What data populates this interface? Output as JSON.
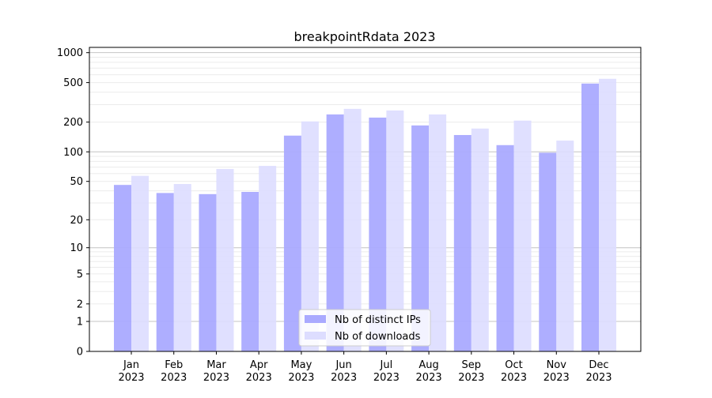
{
  "chart_data": {
    "type": "bar",
    "title": "breakpointRdata 2023",
    "xlabel": "",
    "ylabel": "",
    "yscale": "log(1+x)",
    "ylim": [
      0,
      1130
    ],
    "yticks": [
      0,
      1,
      2,
      5,
      10,
      20,
      50,
      100,
      200,
      500,
      1000
    ],
    "grid": true,
    "legend_position": "bottom-center",
    "categories": [
      "Jan\n2023",
      "Feb\n2023",
      "Mar\n2023",
      "Apr\n2023",
      "May\n2023",
      "Jun\n2023",
      "Jul\n2023",
      "Aug\n2023",
      "Sep\n2023",
      "Oct\n2023",
      "Nov\n2023",
      "Dec\n2023"
    ],
    "series": [
      {
        "name": "Nb of distinct IPs",
        "color": "#aaaaff",
        "values": [
          46,
          38,
          37,
          39,
          146,
          239,
          222,
          185,
          148,
          117,
          98,
          489
        ]
      },
      {
        "name": "Nb of downloads",
        "color": "#ddddff",
        "values": [
          57,
          47,
          67,
          72,
          203,
          272,
          262,
          239,
          172,
          207,
          130,
          546
        ]
      }
    ]
  }
}
